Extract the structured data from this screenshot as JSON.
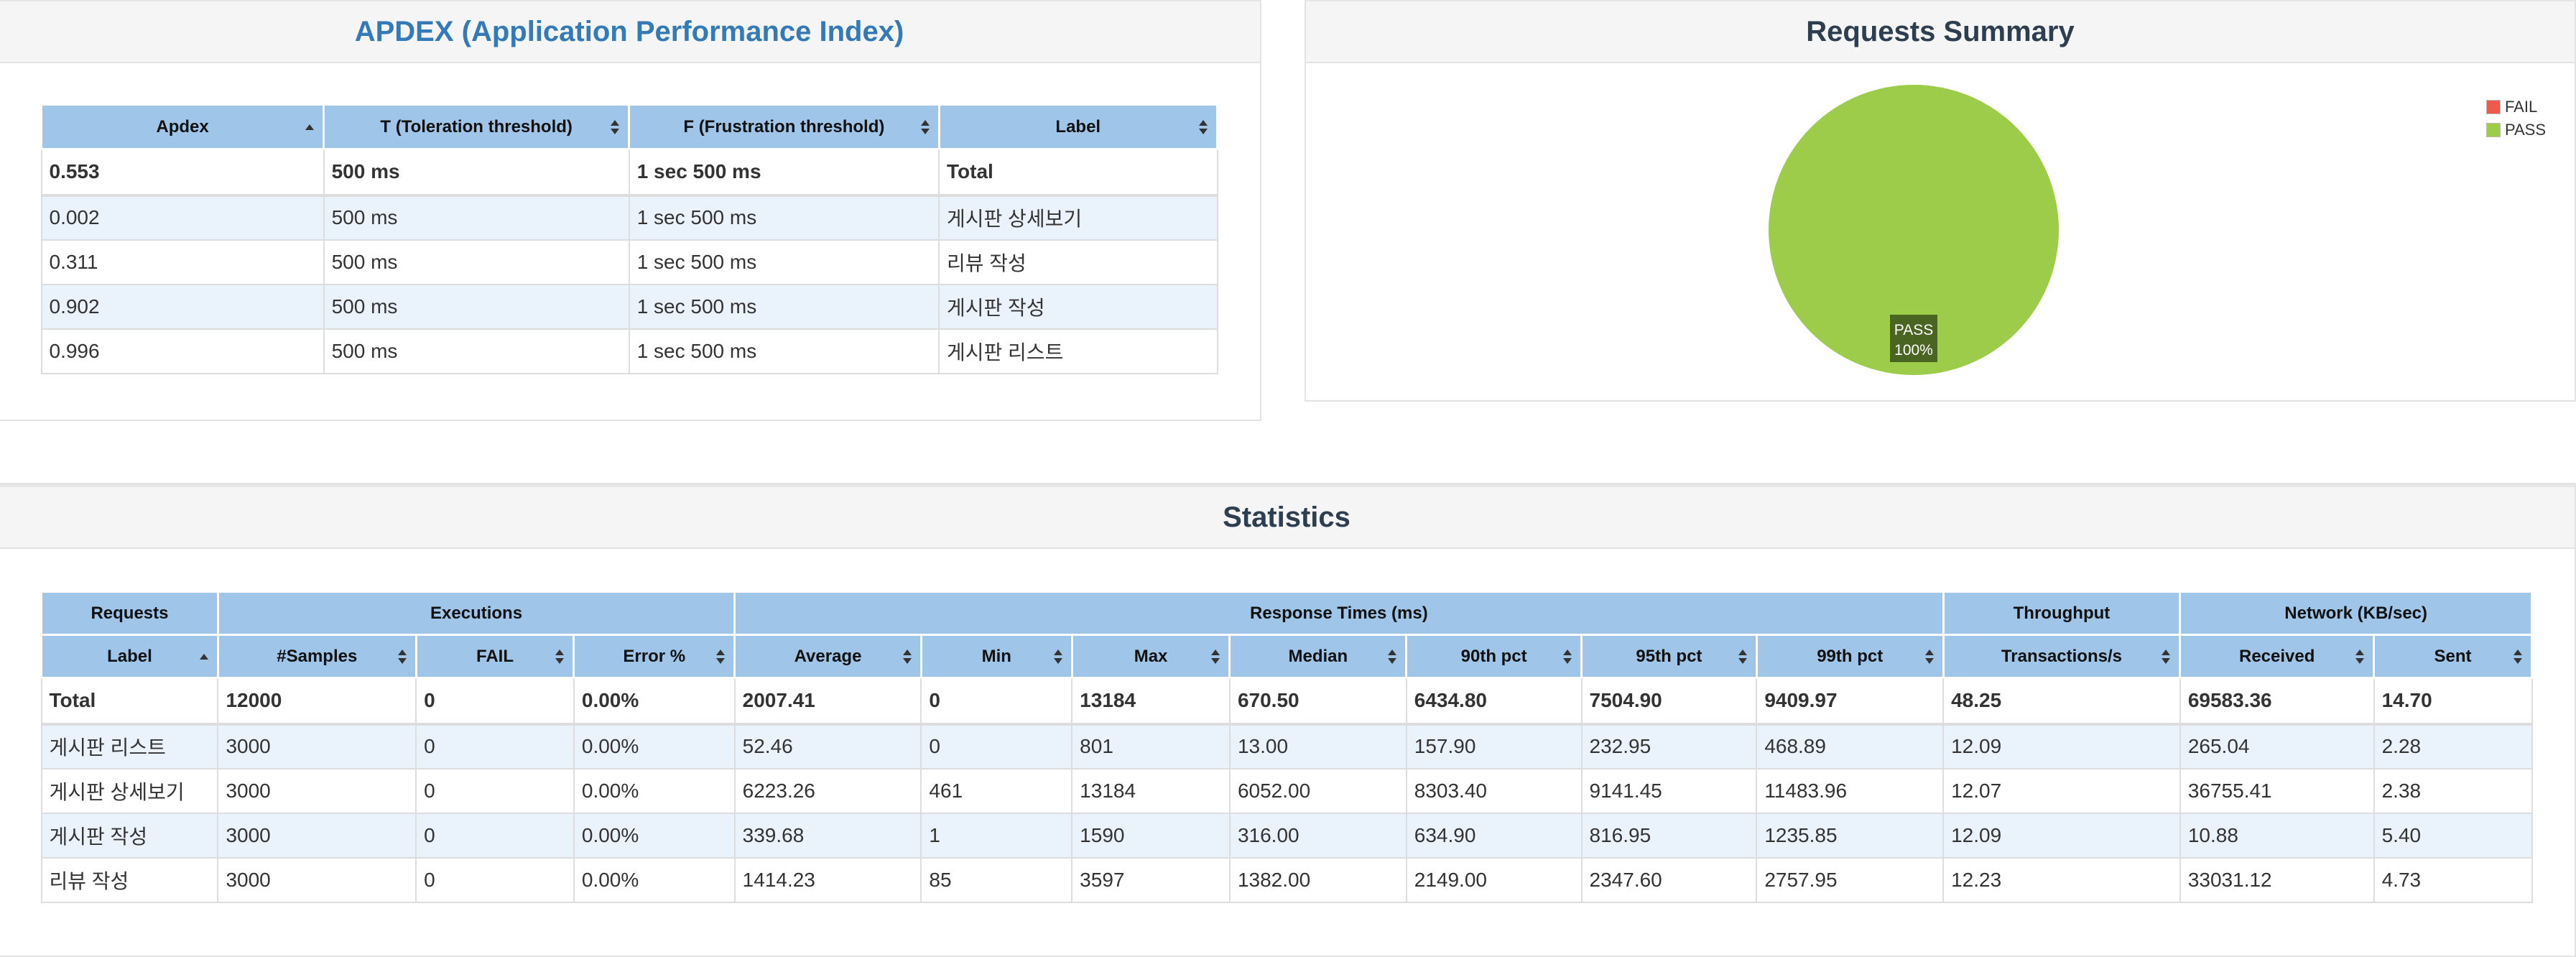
{
  "colors": {
    "pass": "#9ccc4a",
    "fail": "#ee5a4d",
    "header": "#9fc5e8",
    "apdex_title": "#337ab7"
  },
  "apdex": {
    "title": "APDEX (Application Performance Index)",
    "columns": [
      "Apdex",
      "T (Toleration threshold)",
      "F (Frustration threshold)",
      "Label"
    ],
    "total": [
      "0.553",
      "500 ms",
      "1 sec 500 ms",
      "Total"
    ],
    "rows": [
      [
        "0.002",
        "500 ms",
        "1 sec 500 ms",
        "게시판 상세보기"
      ],
      [
        "0.311",
        "500 ms",
        "1 sec 500 ms",
        "리뷰 작성"
      ],
      [
        "0.902",
        "500 ms",
        "1 sec 500 ms",
        "게시판 작성"
      ],
      [
        "0.996",
        "500 ms",
        "1 sec 500 ms",
        "게시판 리스트"
      ]
    ]
  },
  "summary": {
    "title": "Requests Summary",
    "legend": [
      "FAIL",
      "PASS"
    ],
    "slice_label": "PASS",
    "slice_pct": "100%",
    "chart_data": {
      "type": "pie",
      "categories": [
        "FAIL",
        "PASS"
      ],
      "values": [
        0,
        100
      ],
      "legend": "top-right"
    }
  },
  "stats": {
    "title": "Statistics",
    "groups": [
      "Requests",
      "Executions",
      "Response Times (ms)",
      "Throughput",
      "Network (KB/sec)"
    ],
    "columns": [
      "Label",
      "#Samples",
      "FAIL",
      "Error %",
      "Average",
      "Min",
      "Max",
      "Median",
      "90th pct",
      "95th pct",
      "99th pct",
      "Transactions/s",
      "Received",
      "Sent"
    ],
    "total": [
      "Total",
      "12000",
      "0",
      "0.00%",
      "2007.41",
      "0",
      "13184",
      "670.50",
      "6434.80",
      "7504.90",
      "9409.97",
      "48.25",
      "69583.36",
      "14.70"
    ],
    "rows": [
      [
        "게시판 리스트",
        "3000",
        "0",
        "0.00%",
        "52.46",
        "0",
        "801",
        "13.00",
        "157.90",
        "232.95",
        "468.89",
        "12.09",
        "265.04",
        "2.28"
      ],
      [
        "게시판 상세보기",
        "3000",
        "0",
        "0.00%",
        "6223.26",
        "461",
        "13184",
        "6052.00",
        "8303.40",
        "9141.45",
        "11483.96",
        "12.07",
        "36755.41",
        "2.38"
      ],
      [
        "게시판 작성",
        "3000",
        "0",
        "0.00%",
        "339.68",
        "1",
        "1590",
        "316.00",
        "634.90",
        "816.95",
        "1235.85",
        "12.09",
        "10.88",
        "5.40"
      ],
      [
        "리뷰 작성",
        "3000",
        "0",
        "0.00%",
        "1414.23",
        "85",
        "3597",
        "1382.00",
        "2149.00",
        "2347.60",
        "2757.95",
        "12.23",
        "33031.12",
        "4.73"
      ]
    ]
  }
}
